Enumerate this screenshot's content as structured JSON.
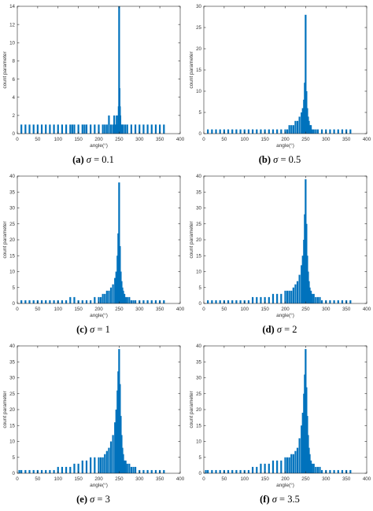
{
  "colors": {
    "bar": "#0072BD",
    "axis": "#262626",
    "tick_text": "#333333",
    "background": "#ffffff"
  },
  "chart_data": [
    {
      "type": "bar",
      "caption": {
        "tag": "(a)",
        "symbol": "σ",
        "equals": "= 0.1"
      },
      "xlabel": "angle(°)",
      "ylabel": "count parameter",
      "xlim": [
        0,
        400
      ],
      "ylim": [
        0,
        14
      ],
      "xticks": [
        0,
        50,
        100,
        150,
        200,
        250,
        300,
        350,
        400
      ],
      "yticks": [
        0,
        2,
        4,
        6,
        8,
        10,
        12,
        14
      ],
      "grid": false,
      "x": [
        10,
        20,
        30,
        40,
        50,
        60,
        70,
        80,
        90,
        100,
        110,
        120,
        130,
        135,
        140,
        150,
        160,
        165,
        170,
        180,
        190,
        200,
        210,
        215,
        220,
        225,
        230,
        235,
        238,
        240,
        242,
        244,
        246,
        248,
        249,
        250,
        251,
        252,
        253,
        254,
        256,
        258,
        260,
        265,
        270,
        280,
        290,
        300,
        310,
        320,
        330,
        340,
        350,
        360
      ],
      "values": [
        1,
        1,
        1,
        1,
        1,
        1,
        1,
        1,
        1,
        1,
        1,
        1,
        1,
        1,
        1,
        1,
        1,
        1,
        1,
        1,
        1,
        1,
        1,
        1,
        1,
        2,
        1,
        1,
        2,
        1,
        1,
        2,
        1,
        2,
        3,
        14,
        5,
        3,
        2,
        1,
        1,
        1,
        1,
        1,
        1,
        1,
        1,
        1,
        1,
        1,
        1,
        1,
        1,
        1
      ]
    },
    {
      "type": "bar",
      "caption": {
        "tag": "(b)",
        "symbol": "σ",
        "equals": "= 0.5"
      },
      "xlabel": "angle(°)",
      "ylabel": "count parameter",
      "xlim": [
        0,
        400
      ],
      "ylim": [
        0,
        30
      ],
      "xticks": [
        0,
        50,
        100,
        150,
        200,
        250,
        300,
        350,
        400
      ],
      "yticks": [
        0,
        5,
        10,
        15,
        20,
        25,
        30
      ],
      "grid": false,
      "x": [
        10,
        20,
        30,
        40,
        50,
        60,
        70,
        80,
        90,
        100,
        110,
        120,
        130,
        140,
        150,
        160,
        170,
        180,
        190,
        200,
        205,
        210,
        215,
        220,
        225,
        230,
        235,
        240,
        243,
        246,
        248,
        250,
        252,
        254,
        256,
        258,
        260,
        263,
        266,
        270,
        275,
        280,
        290,
        300,
        310,
        320,
        330,
        340,
        350,
        360
      ],
      "values": [
        1,
        1,
        1,
        1,
        1,
        1,
        1,
        1,
        1,
        1,
        1,
        1,
        1,
        1,
        1,
        1,
        1,
        1,
        1,
        1,
        1,
        2,
        2,
        2,
        3,
        3,
        4,
        5,
        6,
        8,
        12,
        28,
        10,
        6,
        4,
        3,
        2,
        2,
        1,
        1,
        1,
        1,
        1,
        1,
        1,
        1,
        1,
        1,
        1,
        1
      ]
    },
    {
      "type": "bar",
      "caption": {
        "tag": "(c)",
        "symbol": "σ",
        "equals": "= 1"
      },
      "xlabel": "angle(°)",
      "ylabel": "count parameter",
      "xlim": [
        0,
        400
      ],
      "ylim": [
        0,
        40
      ],
      "xticks": [
        0,
        50,
        100,
        150,
        200,
        250,
        300,
        350,
        400
      ],
      "yticks": [
        0,
        5,
        10,
        15,
        20,
        25,
        30,
        35,
        40
      ],
      "grid": false,
      "x": [
        10,
        20,
        30,
        40,
        50,
        60,
        70,
        80,
        90,
        100,
        110,
        120,
        130,
        140,
        150,
        160,
        170,
        180,
        190,
        200,
        205,
        210,
        215,
        220,
        225,
        230,
        235,
        240,
        243,
        246,
        248,
        250,
        252,
        254,
        256,
        258,
        260,
        263,
        266,
        270,
        275,
        280,
        285,
        290,
        300,
        310,
        320,
        330,
        340,
        350,
        360
      ],
      "values": [
        1,
        1,
        1,
        1,
        1,
        1,
        1,
        1,
        1,
        1,
        1,
        1,
        2,
        2,
        1,
        1,
        1,
        1,
        2,
        2,
        2,
        3,
        3,
        4,
        4,
        5,
        6,
        8,
        10,
        15,
        22,
        38,
        18,
        10,
        7,
        5,
        4,
        3,
        2,
        2,
        2,
        1,
        1,
        1,
        1,
        1,
        1,
        1,
        1,
        1,
        1
      ]
    },
    {
      "type": "bar",
      "caption": {
        "tag": "(d)",
        "symbol": "σ",
        "equals": "= 2"
      },
      "xlabel": "angle(°)",
      "ylabel": "count parameter",
      "xlim": [
        0,
        400
      ],
      "ylim": [
        0,
        40
      ],
      "xticks": [
        0,
        50,
        100,
        150,
        200,
        250,
        300,
        350,
        400
      ],
      "yticks": [
        0,
        5,
        10,
        15,
        20,
        25,
        30,
        35,
        40
      ],
      "grid": false,
      "x": [
        10,
        20,
        30,
        40,
        50,
        60,
        70,
        80,
        90,
        100,
        110,
        120,
        130,
        140,
        150,
        160,
        170,
        180,
        190,
        200,
        205,
        210,
        215,
        220,
        225,
        230,
        235,
        240,
        243,
        246,
        248,
        250,
        252,
        254,
        256,
        258,
        260,
        263,
        266,
        270,
        275,
        280,
        285,
        290,
        300,
        310,
        320,
        330,
        340,
        350,
        360
      ],
      "values": [
        1,
        1,
        1,
        1,
        1,
        1,
        1,
        1,
        1,
        1,
        1,
        2,
        2,
        2,
        2,
        2,
        3,
        3,
        3,
        4,
        4,
        4,
        4,
        5,
        6,
        7,
        9,
        12,
        15,
        20,
        28,
        39,
        25,
        15,
        10,
        7,
        5,
        4,
        3,
        3,
        2,
        2,
        2,
        1,
        1,
        1,
        1,
        1,
        1,
        1,
        1
      ]
    },
    {
      "type": "bar",
      "caption": {
        "tag": "(e)",
        "symbol": "σ",
        "equals": "= 3"
      },
      "xlabel": "angle(°)",
      "ylabel": "count parameter",
      "xlim": [
        0,
        400
      ],
      "ylim": [
        0,
        40
      ],
      "xticks": [
        0,
        50,
        100,
        150,
        200,
        250,
        300,
        350,
        400
      ],
      "yticks": [
        0,
        5,
        10,
        15,
        20,
        25,
        30,
        35,
        40
      ],
      "grid": false,
      "x": [
        5,
        10,
        20,
        30,
        40,
        50,
        60,
        70,
        80,
        90,
        100,
        110,
        120,
        130,
        140,
        150,
        160,
        170,
        180,
        190,
        200,
        205,
        210,
        215,
        220,
        225,
        230,
        235,
        240,
        243,
        246,
        248,
        250,
        252,
        254,
        256,
        258,
        260,
        263,
        266,
        270,
        275,
        280,
        285,
        290,
        300,
        310,
        320,
        330,
        340,
        350,
        360
      ],
      "values": [
        1,
        1,
        1,
        1,
        1,
        1,
        1,
        1,
        1,
        1,
        2,
        2,
        2,
        2,
        3,
        3,
        4,
        4,
        5,
        5,
        5,
        5,
        5,
        6,
        7,
        8,
        10,
        12,
        16,
        20,
        26,
        32,
        39,
        28,
        18,
        12,
        8,
        6,
        4,
        4,
        3,
        3,
        2,
        2,
        2,
        1,
        1,
        1,
        1,
        1,
        1,
        1
      ]
    },
    {
      "type": "bar",
      "caption": {
        "tag": "(f)",
        "symbol": "σ",
        "equals": "= 3.5"
      },
      "xlabel": "angle(°)",
      "ylabel": "count parameter",
      "xlim": [
        0,
        400
      ],
      "ylim": [
        0,
        40
      ],
      "xticks": [
        0,
        50,
        100,
        150,
        200,
        250,
        300,
        350,
        400
      ],
      "yticks": [
        0,
        5,
        10,
        15,
        20,
        25,
        30,
        35,
        40
      ],
      "grid": false,
      "x": [
        5,
        10,
        20,
        30,
        40,
        50,
        60,
        70,
        80,
        90,
        100,
        110,
        120,
        130,
        140,
        150,
        160,
        170,
        180,
        190,
        200,
        205,
        210,
        215,
        220,
        225,
        230,
        235,
        240,
        243,
        246,
        248,
        250,
        252,
        254,
        256,
        258,
        260,
        263,
        266,
        270,
        275,
        280,
        285,
        290,
        300,
        310,
        320,
        330,
        340,
        350,
        360
      ],
      "values": [
        1,
        1,
        1,
        1,
        1,
        1,
        1,
        1,
        1,
        1,
        1,
        1,
        2,
        2,
        3,
        3,
        3,
        4,
        4,
        4,
        5,
        5,
        5,
        6,
        6,
        7,
        8,
        11,
        15,
        19,
        25,
        31,
        39,
        27,
        18,
        12,
        8,
        6,
        4,
        3,
        3,
        2,
        2,
        2,
        1,
        1,
        1,
        1,
        1,
        1,
        1,
        1
      ]
    }
  ]
}
